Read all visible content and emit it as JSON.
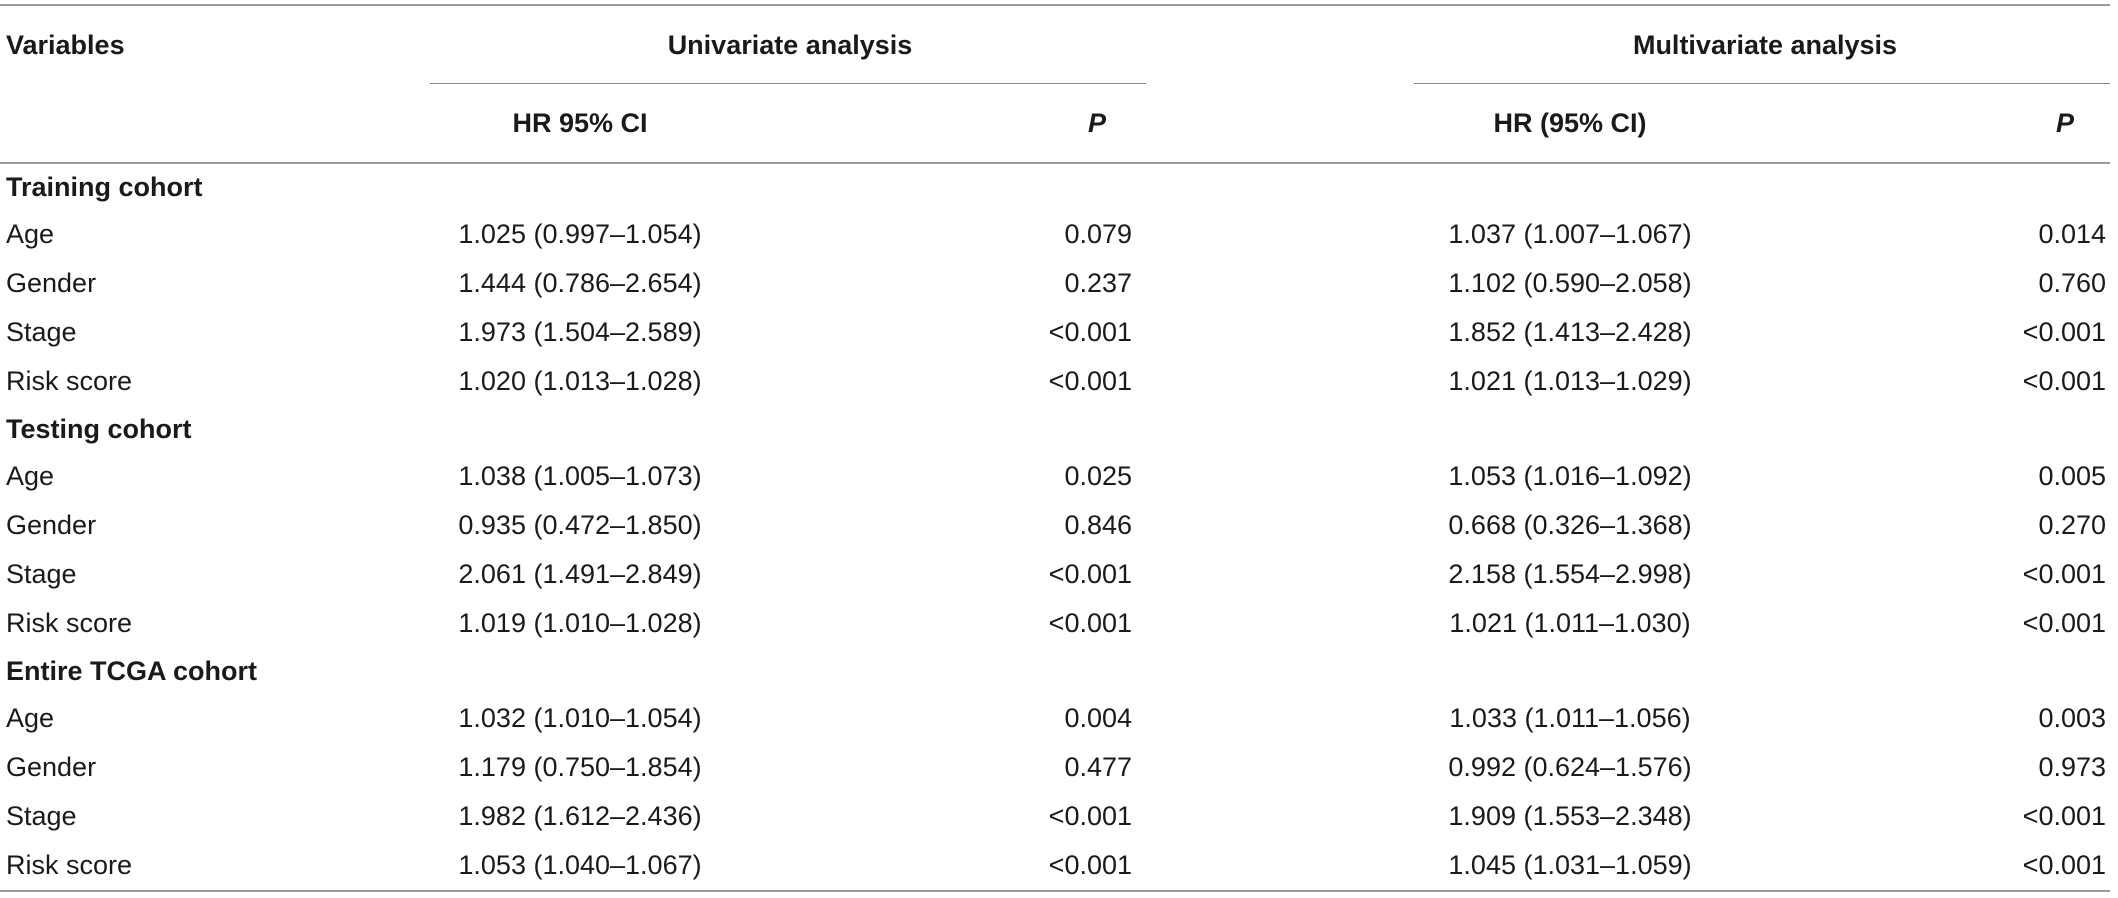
{
  "header": {
    "variables": "Variables",
    "univariate": "Univariate analysis",
    "multivariate": "Multivariate analysis",
    "uni_hr": "HR 95% CI",
    "uni_p": "P",
    "multi_hr": "HR (95% CI)",
    "multi_p": "P"
  },
  "sections": [
    {
      "title": "Training cohort",
      "rows": [
        {
          "variable": "Age",
          "uni_hr": "1.025 (0.997–1.054)",
          "uni_p": "0.079",
          "multi_hr": "1.037 (1.007–1.067)",
          "multi_p": "0.014"
        },
        {
          "variable": "Gender",
          "uni_hr": "1.444 (0.786–2.654)",
          "uni_p": "0.237",
          "multi_hr": "1.102 (0.590–2.058)",
          "multi_p": "0.760"
        },
        {
          "variable": "Stage",
          "uni_hr": "1.973 (1.504–2.589)",
          "uni_p": "<0.001",
          "multi_hr": "1.852 (1.413–2.428)",
          "multi_p": "<0.001"
        },
        {
          "variable": "Risk score",
          "uni_hr": "1.020 (1.013–1.028)",
          "uni_p": "<0.001",
          "multi_hr": "1.021 (1.013–1.029)",
          "multi_p": "<0.001"
        }
      ]
    },
    {
      "title": "Testing cohort",
      "rows": [
        {
          "variable": "Age",
          "uni_hr": "1.038 (1.005–1.073)",
          "uni_p": "0.025",
          "multi_hr": "1.053 (1.016–1.092)",
          "multi_p": "0.005"
        },
        {
          "variable": "Gender",
          "uni_hr": "0.935 (0.472–1.850)",
          "uni_p": "0.846",
          "multi_hr": "0.668 (0.326–1.368)",
          "multi_p": "0.270"
        },
        {
          "variable": "Stage",
          "uni_hr": "2.061 (1.491–2.849)",
          "uni_p": "<0.001",
          "multi_hr": "2.158 (1.554–2.998)",
          "multi_p": "<0.001"
        },
        {
          "variable": "Risk score",
          "uni_hr": "1.019 (1.010–1.028)",
          "uni_p": "<0.001",
          "multi_hr": "1.021 (1.011–1.030)",
          "multi_p": "<0.001"
        }
      ]
    },
    {
      "title": "Entire TCGA cohort",
      "rows": [
        {
          "variable": "Age",
          "uni_hr": "1.032 (1.010–1.054)",
          "uni_p": "0.004",
          "multi_hr": "1.033 (1.011–1.056)",
          "multi_p": "0.003"
        },
        {
          "variable": "Gender",
          "uni_hr": "1.179 (0.750–1.854)",
          "uni_p": "0.477",
          "multi_hr": "0.992 (0.624–1.576)",
          "multi_p": "0.973"
        },
        {
          "variable": "Stage",
          "uni_hr": "1.982 (1.612–2.436)",
          "uni_p": "<0.001",
          "multi_hr": "1.909 (1.553–2.348)",
          "multi_p": "<0.001"
        },
        {
          "variable": "Risk score",
          "uni_hr": "1.053 (1.040–1.067)",
          "uni_p": "<0.001",
          "multi_hr": "1.045 (1.031–1.059)",
          "multi_p": "<0.001"
        }
      ]
    }
  ]
}
